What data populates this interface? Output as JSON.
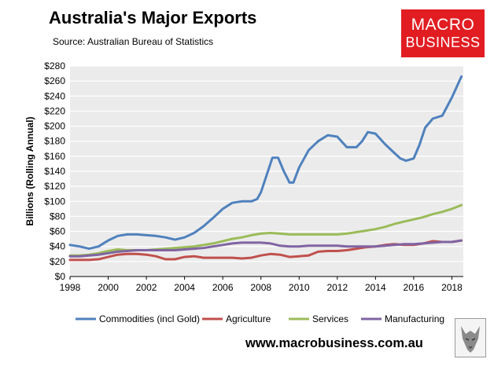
{
  "header": {
    "title": "Australia's Major Exports",
    "source": "Source: Australian Bureau of Statistics"
  },
  "logo": {
    "line1": "MACRO",
    "line2": "BUSINESS"
  },
  "footer": {
    "url": "www.macrobusiness.com.au"
  },
  "colors": {
    "commodities": "#4f81bd",
    "agriculture": "#c0504d",
    "services": "#9bbb59",
    "manufacturing": "#8064a2",
    "plot_bg": "#ebebeb",
    "grid": "#ffffff",
    "logo_bg": "#e11d22"
  },
  "chart_data": {
    "type": "line",
    "title": "Australia's Major Exports",
    "ylabel": "Billions (Rolling Annual)",
    "xlabel": "",
    "xlim": [
      1998,
      2018.6
    ],
    "ylim": [
      0,
      280
    ],
    "x_ticks": [
      1998,
      2000,
      2002,
      2004,
      2006,
      2008,
      2010,
      2012,
      2014,
      2016,
      2018
    ],
    "y_ticks": [
      "$0",
      "$20",
      "$40",
      "$60",
      "$80",
      "$100",
      "$120",
      "$140",
      "$160",
      "$180",
      "$200",
      "$220",
      "$240",
      "$260",
      "$280"
    ],
    "y_tick_values": [
      0,
      20,
      40,
      60,
      80,
      100,
      120,
      140,
      160,
      180,
      200,
      220,
      240,
      260,
      280
    ],
    "grid": "horizontal",
    "legend_position": "bottom",
    "series": [
      {
        "name": "Commodities (incl Gold)",
        "points": [
          [
            1998,
            42
          ],
          [
            1998.5,
            40
          ],
          [
            1999,
            37
          ],
          [
            1999.5,
            40
          ],
          [
            2000,
            48
          ],
          [
            2000.5,
            54
          ],
          [
            2001,
            56
          ],
          [
            2001.5,
            56
          ],
          [
            2002,
            55
          ],
          [
            2002.5,
            54
          ],
          [
            2003,
            52
          ],
          [
            2003.5,
            49
          ],
          [
            2004,
            52
          ],
          [
            2004.5,
            58
          ],
          [
            2005,
            67
          ],
          [
            2005.5,
            78
          ],
          [
            2006,
            90
          ],
          [
            2006.5,
            98
          ],
          [
            2007,
            100
          ],
          [
            2007.5,
            100
          ],
          [
            2007.8,
            103
          ],
          [
            2008,
            112
          ],
          [
            2008.3,
            135
          ],
          [
            2008.6,
            158
          ],
          [
            2008.9,
            158
          ],
          [
            2009.2,
            140
          ],
          [
            2009.5,
            125
          ],
          [
            2009.7,
            125
          ],
          [
            2010,
            145
          ],
          [
            2010.5,
            168
          ],
          [
            2011,
            180
          ],
          [
            2011.5,
            188
          ],
          [
            2012,
            186
          ],
          [
            2012.5,
            172
          ],
          [
            2013,
            172
          ],
          [
            2013.3,
            180
          ],
          [
            2013.6,
            192
          ],
          [
            2014,
            190
          ],
          [
            2014.5,
            176
          ],
          [
            2015,
            164
          ],
          [
            2015.3,
            157
          ],
          [
            2015.6,
            154
          ],
          [
            2016,
            157
          ],
          [
            2016.3,
            175
          ],
          [
            2016.6,
            198
          ],
          [
            2017,
            210
          ],
          [
            2017.5,
            214
          ],
          [
            2018,
            238
          ],
          [
            2018.5,
            266
          ]
        ]
      },
      {
        "name": "Agriculture",
        "points": [
          [
            1998,
            22
          ],
          [
            1998.5,
            22
          ],
          [
            1999,
            22
          ],
          [
            1999.5,
            23
          ],
          [
            2000,
            26
          ],
          [
            2000.5,
            29
          ],
          [
            2001,
            30
          ],
          [
            2001.5,
            30
          ],
          [
            2002,
            29
          ],
          [
            2002.5,
            27
          ],
          [
            2003,
            23
          ],
          [
            2003.5,
            23
          ],
          [
            2004,
            26
          ],
          [
            2004.5,
            27
          ],
          [
            2005,
            25
          ],
          [
            2005.5,
            25
          ],
          [
            2006,
            25
          ],
          [
            2006.5,
            25
          ],
          [
            2007,
            24
          ],
          [
            2007.5,
            25
          ],
          [
            2008,
            28
          ],
          [
            2008.5,
            30
          ],
          [
            2009,
            29
          ],
          [
            2009.5,
            26
          ],
          [
            2010,
            27
          ],
          [
            2010.5,
            28
          ],
          [
            2011,
            33
          ],
          [
            2011.5,
            34
          ],
          [
            2012,
            34
          ],
          [
            2012.5,
            35
          ],
          [
            2013,
            37
          ],
          [
            2013.5,
            39
          ],
          [
            2014,
            40
          ],
          [
            2014.5,
            42
          ],
          [
            2015,
            43
          ],
          [
            2015.5,
            42
          ],
          [
            2016,
            42
          ],
          [
            2016.5,
            44
          ],
          [
            2017,
            47
          ],
          [
            2017.5,
            46
          ],
          [
            2018,
            46
          ],
          [
            2018.5,
            48
          ]
        ]
      },
      {
        "name": "Services",
        "points": [
          [
            1998,
            28
          ],
          [
            1998.5,
            28
          ],
          [
            1999,
            29
          ],
          [
            1999.5,
            31
          ],
          [
            2000,
            34
          ],
          [
            2000.5,
            36
          ],
          [
            2001,
            35
          ],
          [
            2001.5,
            35
          ],
          [
            2002,
            35
          ],
          [
            2002.5,
            36
          ],
          [
            2003,
            37
          ],
          [
            2003.5,
            38
          ],
          [
            2004,
            39
          ],
          [
            2004.5,
            40
          ],
          [
            2005,
            42
          ],
          [
            2005.5,
            44
          ],
          [
            2006,
            47
          ],
          [
            2006.5,
            50
          ],
          [
            2007,
            52
          ],
          [
            2007.5,
            55
          ],
          [
            2008,
            57
          ],
          [
            2008.5,
            58
          ],
          [
            2009,
            57
          ],
          [
            2009.5,
            56
          ],
          [
            2010,
            56
          ],
          [
            2010.5,
            56
          ],
          [
            2011,
            56
          ],
          [
            2011.5,
            56
          ],
          [
            2012,
            56
          ],
          [
            2012.5,
            57
          ],
          [
            2013,
            59
          ],
          [
            2013.5,
            61
          ],
          [
            2014,
            63
          ],
          [
            2014.5,
            66
          ],
          [
            2015,
            70
          ],
          [
            2015.5,
            73
          ],
          [
            2016,
            76
          ],
          [
            2016.5,
            79
          ],
          [
            2017,
            83
          ],
          [
            2017.5,
            86
          ],
          [
            2018,
            90
          ],
          [
            2018.5,
            95
          ]
        ]
      },
      {
        "name": "Manufacturing",
        "points": [
          [
            1998,
            27
          ],
          [
            1998.5,
            27
          ],
          [
            1999,
            28
          ],
          [
            1999.5,
            29
          ],
          [
            2000,
            31
          ],
          [
            2000.5,
            33
          ],
          [
            2001,
            34
          ],
          [
            2001.5,
            35
          ],
          [
            2002,
            35
          ],
          [
            2002.5,
            35
          ],
          [
            2003,
            35
          ],
          [
            2003.5,
            35
          ],
          [
            2004,
            36
          ],
          [
            2004.5,
            37
          ],
          [
            2005,
            38
          ],
          [
            2005.5,
            40
          ],
          [
            2006,
            42
          ],
          [
            2006.5,
            44
          ],
          [
            2007,
            45
          ],
          [
            2007.5,
            45
          ],
          [
            2008,
            45
          ],
          [
            2008.5,
            44
          ],
          [
            2009,
            41
          ],
          [
            2009.5,
            40
          ],
          [
            2010,
            40
          ],
          [
            2010.5,
            41
          ],
          [
            2011,
            41
          ],
          [
            2011.5,
            41
          ],
          [
            2012,
            41
          ],
          [
            2012.5,
            40
          ],
          [
            2013,
            40
          ],
          [
            2013.5,
            40
          ],
          [
            2014,
            40
          ],
          [
            2014.5,
            41
          ],
          [
            2015,
            42
          ],
          [
            2015.5,
            43
          ],
          [
            2016,
            43
          ],
          [
            2016.5,
            44
          ],
          [
            2017,
            45
          ],
          [
            2017.5,
            46
          ],
          [
            2018,
            46
          ],
          [
            2018.5,
            48
          ]
        ]
      }
    ]
  }
}
